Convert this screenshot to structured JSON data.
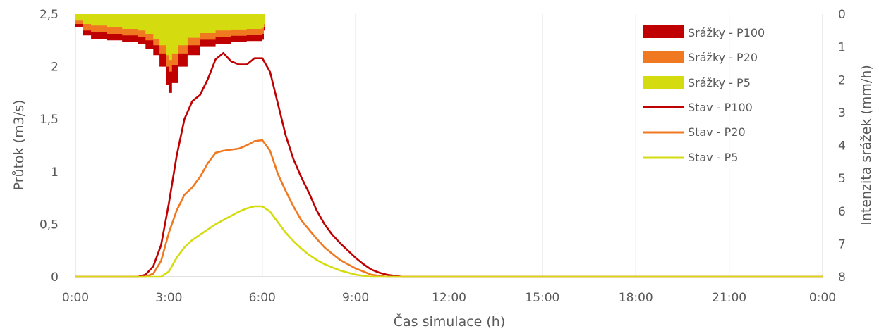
{
  "chart_data": {
    "type": "line",
    "xlabel": "Čas simulace (h)",
    "ylabel": "Průtok (m3/s)",
    "y2label": "Intenzita srážek (mm/h)",
    "xlim": [
      0,
      24
    ],
    "ylim": [
      0,
      2.5
    ],
    "y2lim": [
      0,
      8
    ],
    "y2_inverted": true,
    "grid": "vertical",
    "legend_position": "top-right",
    "x_tick_labels": [
      "0:00",
      "3:00",
      "6:00",
      "9:00",
      "12:00",
      "15:00",
      "18:00",
      "21:00",
      "0:00"
    ],
    "y_tick_labels": [
      "0",
      "0,5",
      "1",
      "1,5",
      "2",
      "2,5"
    ],
    "y2_tick_labels": [
      "0",
      "1",
      "2",
      "3",
      "4",
      "5",
      "6",
      "7",
      "8"
    ],
    "colors": {
      "P100": "#c00000",
      "P20": "#f07820",
      "P5": "#d4dc10"
    },
    "rain_series": [
      {
        "name": "Srážky - P100",
        "color": "#c00000",
        "x": [
          0,
          0.25,
          0.5,
          1.0,
          1.5,
          2.0,
          2.25,
          2.5,
          2.7,
          2.9,
          3.0,
          3.1,
          3.3,
          3.6,
          4.0,
          4.5,
          5.0,
          5.5,
          6.0,
          6.05
        ],
        "values": [
          0.4,
          0.65,
          0.75,
          0.8,
          0.85,
          0.9,
          1.05,
          1.25,
          1.6,
          2.15,
          2.4,
          2.1,
          1.6,
          1.25,
          1.0,
          0.9,
          0.85,
          0.82,
          0.78,
          0.5
        ]
      },
      {
        "name": "Srážky - P20",
        "color": "#f07820",
        "x": [
          0,
          0.25,
          0.5,
          1.0,
          1.5,
          2.0,
          2.25,
          2.5,
          2.7,
          2.9,
          3.0,
          3.1,
          3.3,
          3.6,
          4.0,
          4.5,
          5.0,
          5.5,
          6.0,
          6.05
        ],
        "values": [
          0.3,
          0.5,
          0.55,
          0.6,
          0.65,
          0.7,
          0.8,
          0.95,
          1.2,
          1.6,
          1.75,
          1.55,
          1.2,
          0.95,
          0.78,
          0.7,
          0.66,
          0.63,
          0.6,
          0.4
        ]
      },
      {
        "name": "Srážky - P5",
        "color": "#d4dc10",
        "x": [
          0,
          0.25,
          0.5,
          1.0,
          1.5,
          2.0,
          2.25,
          2.5,
          2.7,
          2.9,
          3.0,
          3.1,
          3.3,
          3.6,
          4.0,
          4.5,
          5.0,
          5.5,
          6.0,
          6.05
        ],
        "values": [
          0.2,
          0.3,
          0.35,
          0.4,
          0.45,
          0.5,
          0.6,
          0.75,
          0.95,
          1.25,
          1.4,
          1.2,
          0.95,
          0.72,
          0.58,
          0.5,
          0.47,
          0.45,
          0.42,
          0.3
        ]
      }
    ],
    "flow_series": [
      {
        "name": "Stav - P100",
        "color": "#c00000",
        "x": [
          0,
          2.0,
          2.25,
          2.5,
          2.75,
          3.0,
          3.25,
          3.5,
          3.75,
          4.0,
          4.25,
          4.5,
          4.75,
          5.0,
          5.25,
          5.5,
          5.75,
          6.0,
          6.25,
          6.5,
          6.75,
          7.0,
          7.25,
          7.5,
          7.75,
          8.0,
          8.25,
          8.5,
          8.75,
          9.0,
          9.25,
          9.5,
          9.75,
          10.0,
          10.25,
          10.5,
          11.0,
          24.0
        ],
        "values": [
          0,
          0,
          0.02,
          0.1,
          0.3,
          0.7,
          1.15,
          1.5,
          1.67,
          1.73,
          1.88,
          2.07,
          2.13,
          2.05,
          2.02,
          2.02,
          2.08,
          2.08,
          1.95,
          1.65,
          1.35,
          1.12,
          0.95,
          0.8,
          0.63,
          0.5,
          0.4,
          0.32,
          0.25,
          0.18,
          0.12,
          0.07,
          0.04,
          0.02,
          0.01,
          0.0,
          0,
          0
        ]
      },
      {
        "name": "Stav - P20",
        "color": "#f07820",
        "x": [
          0,
          2.25,
          2.5,
          2.75,
          3.0,
          3.25,
          3.5,
          3.75,
          4.0,
          4.25,
          4.5,
          4.75,
          5.0,
          5.25,
          5.5,
          5.75,
          6.0,
          6.25,
          6.5,
          6.75,
          7.0,
          7.25,
          7.5,
          7.75,
          8.0,
          8.25,
          8.5,
          8.75,
          9.0,
          9.25,
          9.5,
          9.75,
          10.0,
          10.5,
          24.0
        ],
        "values": [
          0,
          0,
          0.03,
          0.15,
          0.42,
          0.63,
          0.78,
          0.85,
          0.95,
          1.08,
          1.18,
          1.2,
          1.21,
          1.22,
          1.25,
          1.29,
          1.3,
          1.2,
          0.98,
          0.82,
          0.67,
          0.54,
          0.45,
          0.36,
          0.28,
          0.22,
          0.16,
          0.12,
          0.08,
          0.05,
          0.02,
          0.01,
          0.0,
          0,
          0
        ]
      },
      {
        "name": "Stav - P5",
        "color": "#d4dc10",
        "x": [
          0,
          2.75,
          3.0,
          3.25,
          3.5,
          3.75,
          4.0,
          4.25,
          4.5,
          4.75,
          5.0,
          5.25,
          5.5,
          5.75,
          6.0,
          6.25,
          6.5,
          6.75,
          7.0,
          7.25,
          7.5,
          7.75,
          8.0,
          8.25,
          8.5,
          8.75,
          9.0,
          9.25,
          9.5,
          9.75,
          10.0,
          10.5,
          24.0
        ],
        "values": [
          0,
          0,
          0.05,
          0.18,
          0.28,
          0.35,
          0.4,
          0.45,
          0.5,
          0.54,
          0.58,
          0.62,
          0.65,
          0.67,
          0.67,
          0.62,
          0.52,
          0.42,
          0.34,
          0.27,
          0.21,
          0.16,
          0.12,
          0.09,
          0.06,
          0.04,
          0.02,
          0.01,
          0.0,
          0,
          0,
          0,
          0
        ]
      }
    ]
  }
}
